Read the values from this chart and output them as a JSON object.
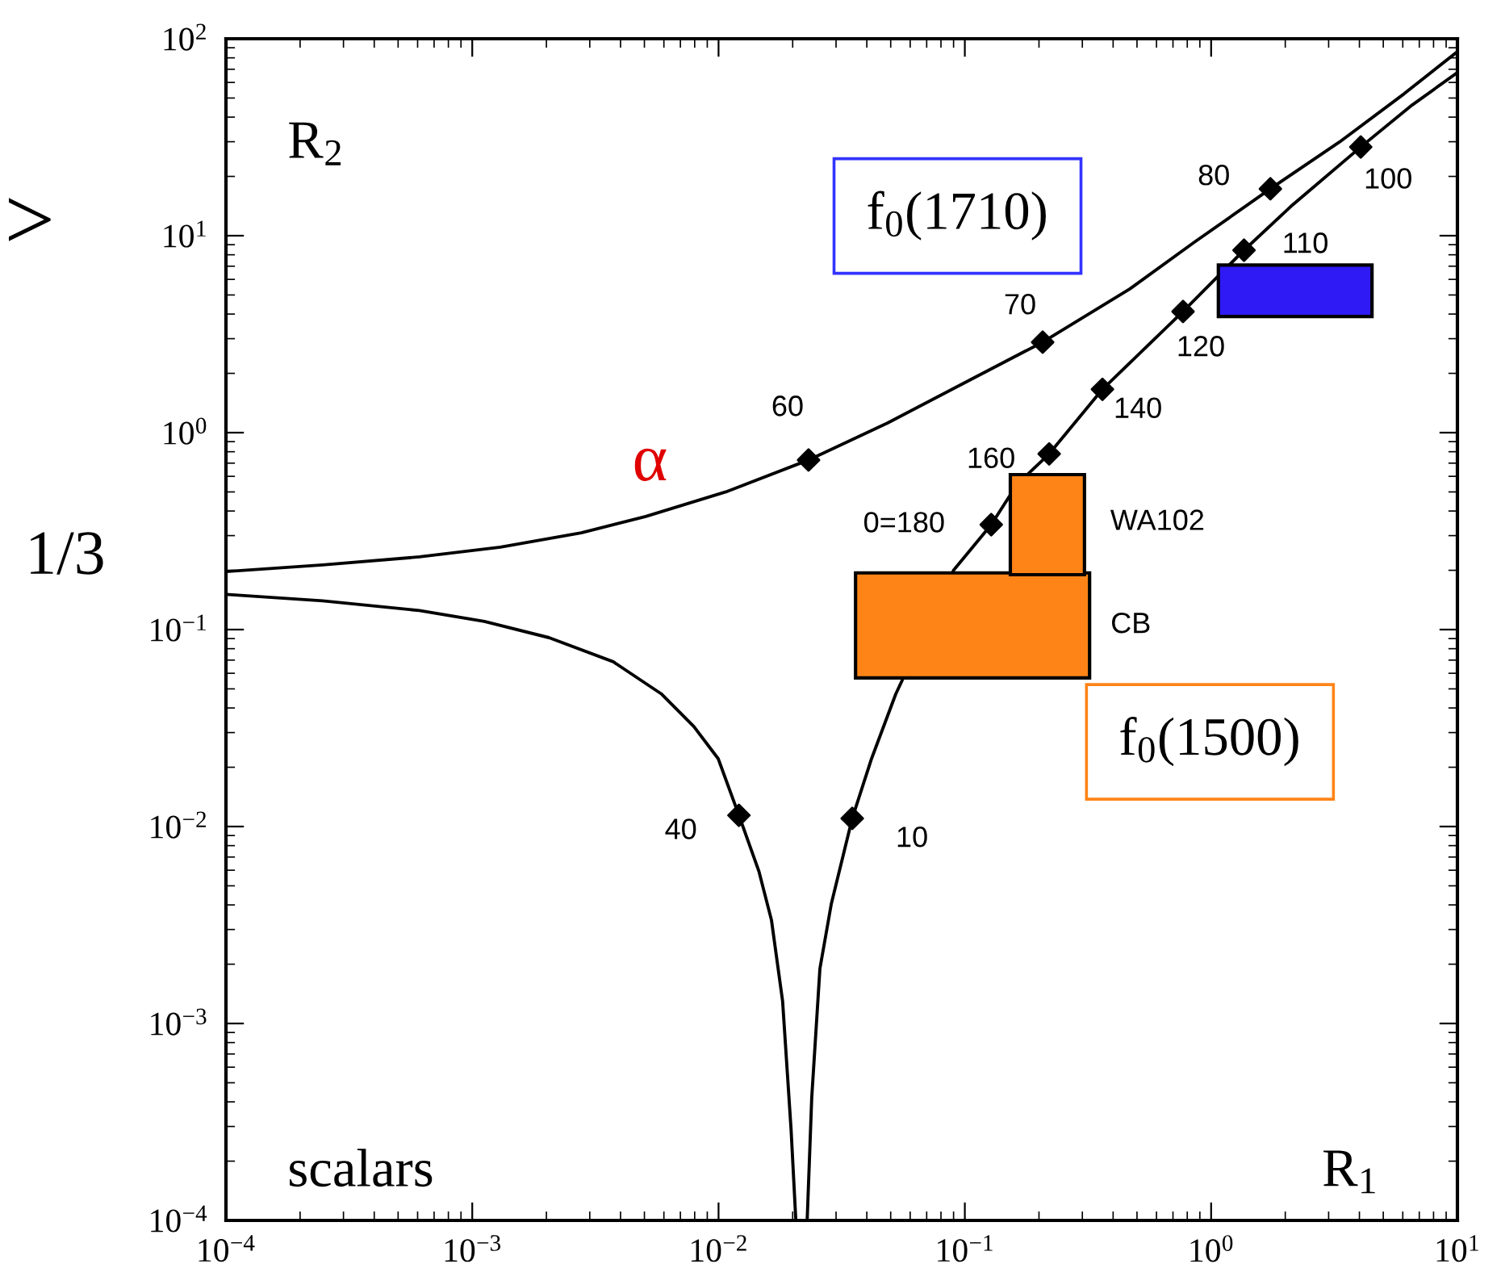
{
  "chart_data": {
    "type": "line",
    "log": "xy",
    "grid": false,
    "marker": "none",
    "line_style": "solid",
    "xlim": [
      0.0001,
      10
    ],
    "ylim": [
      0.0001,
      100
    ],
    "xticks": [
      {
        "value": 0.0001,
        "label": "10$^{−4}$"
      },
      {
        "value": 0.001,
        "label": "10$^{−3}$"
      },
      {
        "value": 0.01,
        "label": "10$^{−2}$"
      },
      {
        "value": 0.1,
        "label": "10$^{−1}$"
      },
      {
        "value": 1,
        "label": "10$^{0}$"
      },
      {
        "value": 10,
        "label": "10$^{1}$"
      }
    ],
    "yticks": [
      {
        "value": 0.0001,
        "label": "10$^{−4}$"
      },
      {
        "value": 0.001,
        "label": "10$^{−3}$"
      },
      {
        "value": 0.01,
        "label": "10$^{−2}$"
      },
      {
        "value": 0.1,
        "label": "10$^{−1}$"
      },
      {
        "value": 1,
        "label": "10$^{0}$"
      },
      {
        "value": 10,
        "label": "10$^{1}$"
      },
      {
        "value": 100,
        "label": "10$^{2}$"
      }
    ],
    "series": [
      {
        "type": "area",
        "color": "#ff8418",
        "x": [
          0.036,
          0.036,
          0.321,
          0.321,
          0.036
        ],
        "values": [
          0.0568,
          0.194,
          0.194,
          0.0568,
          0.0568
        ]
      },
      {
        "type": "area",
        "color": "#ff8418",
        "x": [
          0.153,
          0.153,
          0.306,
          0.306,
          0.153
        ],
        "values": [
          0.19,
          0.612,
          0.612,
          0.19,
          0.19
        ]
      },
      {
        "type": "area",
        "color": "#2f1af5",
        "x": [
          1.07,
          1.07,
          4.5,
          4.5,
          1.07
        ],
        "values": [
          3.89,
          7.1,
          7.1,
          3.89,
          3.89
        ]
      },
      {
        "color": "#000000",
        "x": [
          0.0001,
          0.000247,
          0.00061,
          0.0013,
          0.00277,
          0.00506,
          0.0107,
          0.0232,
          0.0486,
          0.103,
          0.207,
          0.468,
          0.855,
          1.74,
          3.32,
          6.08,
          10
        ],
        "values": [
          0.197,
          0.213,
          0.234,
          0.262,
          0.31,
          0.375,
          0.5,
          0.726,
          1.12,
          1.83,
          2.88,
          5.37,
          9.27,
          17.3,
          29.9,
          52.6,
          86
        ]
      },
      {
        "color": "#000000",
        "x": [
          0.0001,
          0.000247,
          0.00061,
          0.00112,
          0.00205,
          0.00374,
          0.00588,
          0.00794,
          0.00997,
          0.0121,
          0.0146,
          0.0164,
          0.0182,
          0.0197,
          0.0206,
          0.0229,
          0.0239,
          0.0258,
          0.0287,
          0.0349,
          0.0418,
          0.0524,
          0.09,
          0.128,
          0.163,
          0.22,
          0.362,
          0.769,
          1.36,
          2.11,
          4.05,
          6.55,
          10
        ],
        "values": [
          0.151,
          0.14,
          0.125,
          0.11,
          0.091,
          0.0686,
          0.047,
          0.0322,
          0.0221,
          0.0114,
          0.0059,
          0.00335,
          0.0013,
          0.00029,
          0.0001,
          0.0001,
          0.00042,
          0.0019,
          0.00405,
          0.011,
          0.0221,
          0.047,
          0.2,
          0.341,
          0.547,
          0.78,
          1.66,
          4.12,
          8.44,
          14.1,
          28.2,
          46.1,
          67.3
        ]
      },
      {
        "type": "scatter",
        "color": "#000000",
        "marker": "diamond",
        "x": [
          0.0232,
          0.207,
          1.74,
          0.0121,
          0.0349,
          0.128,
          0.22,
          0.362,
          0.769,
          1.36,
          4.05
        ],
        "values": [
          0.726,
          2.88,
          17.3,
          0.0114,
          0.011,
          0.341,
          0.78,
          1.66,
          4.12,
          8.44,
          28.2
        ]
      }
    ],
    "annotations": [
      {
        "text": "60",
        "x": 0.0232,
        "y": 0.726
      },
      {
        "text": "70",
        "x": 0.207,
        "y": 2.88
      },
      {
        "text": "80",
        "x": 1.74,
        "y": 17.3
      },
      {
        "text": "40",
        "x": 0.0121,
        "y": 0.0114
      },
      {
        "text": "10",
        "x": 0.0349,
        "y": 0.011
      },
      {
        "text": "0=180",
        "x": 0.128,
        "y": 0.341
      },
      {
        "text": "160",
        "x": 0.22,
        "y": 0.78
      },
      {
        "text": "140",
        "x": 0.362,
        "y": 1.66
      },
      {
        "text": "120",
        "x": 0.769,
        "y": 4.12
      },
      {
        "text": "110",
        "x": 1.36,
        "y": 8.44
      },
      {
        "text": "100",
        "x": 4.05,
        "y": 28.2
      },
      {
        "text": "WA102",
        "x": 0.306,
        "y": 0.35
      },
      {
        "text": "CB",
        "x": 0.321,
        "y": 0.105
      },
      "f$_{0}$(1710)",
      "f$_{0}$(1500)",
      "R$_{2}$",
      "R$_{1}$",
      "scalars",
      "α",
      "1/3",
      ">"
    ]
  }
}
